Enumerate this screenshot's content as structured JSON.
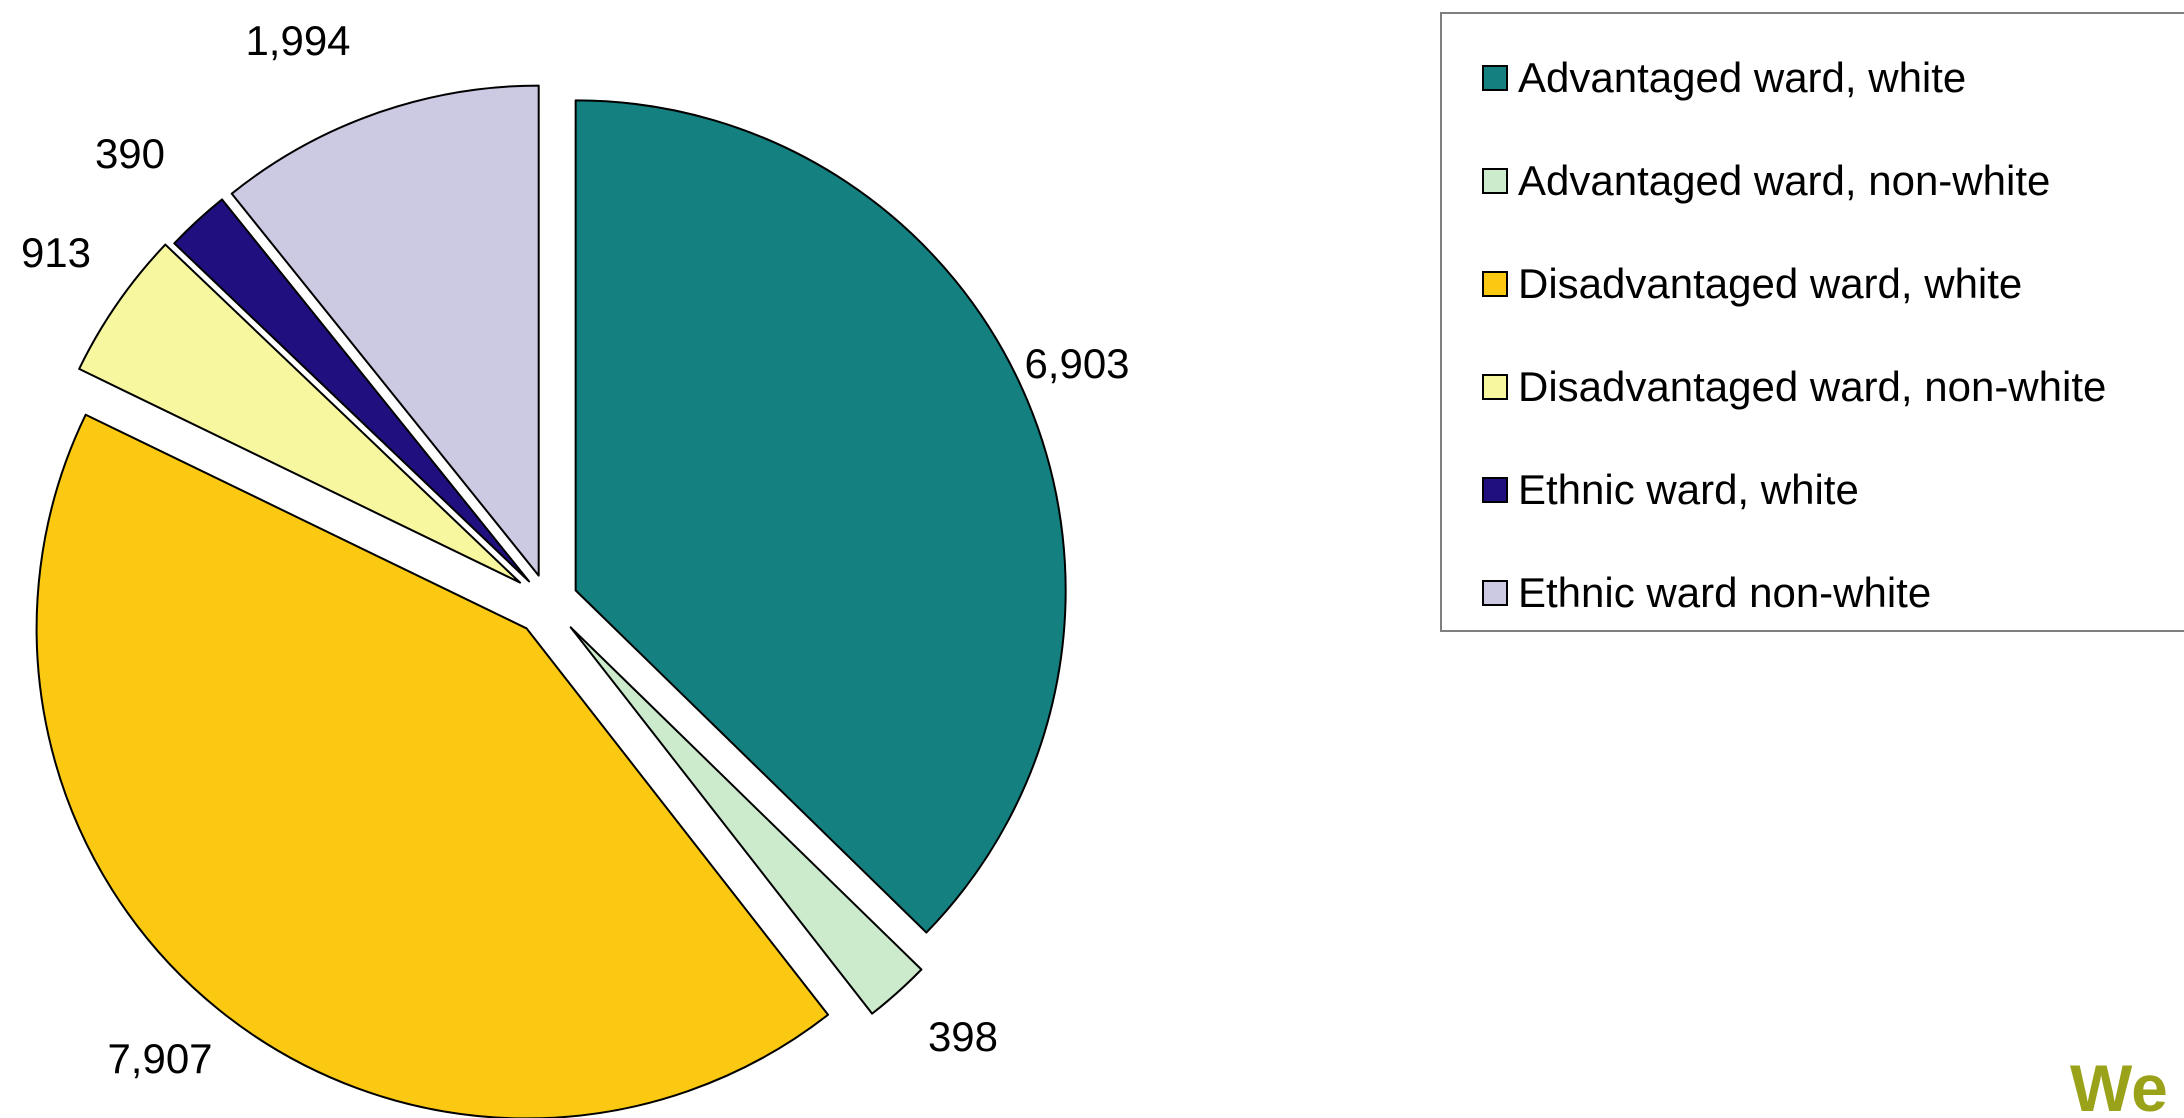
{
  "chart_data": {
    "type": "pie",
    "title": "",
    "exploded": true,
    "start_angle": "12 o'clock",
    "direction": "clockwise",
    "slices": [
      {
        "name": "Advantaged ward, white",
        "value": 6903,
        "label": "6,903",
        "color": "#148080"
      },
      {
        "name": "Advantaged ward, non-white",
        "value": 398,
        "label": "398",
        "color": "#ccebcc"
      },
      {
        "name": "Disadvantaged ward, white",
        "value": 7907,
        "label": "7,907",
        "color": "#fcc912"
      },
      {
        "name": "Disadvantaged ward, non-white",
        "value": 913,
        "label": "913",
        "color": "#f7f7a0"
      },
      {
        "name": "Ethnic ward, white",
        "value": 390,
        "label": "390",
        "color": "#1f0f7f"
      },
      {
        "name": "Ethnic ward non-white",
        "value": 1994,
        "label": "1,994",
        "color": "#ccc9e3"
      }
    ],
    "legend_position": "top-right"
  },
  "corner_text": "We"
}
